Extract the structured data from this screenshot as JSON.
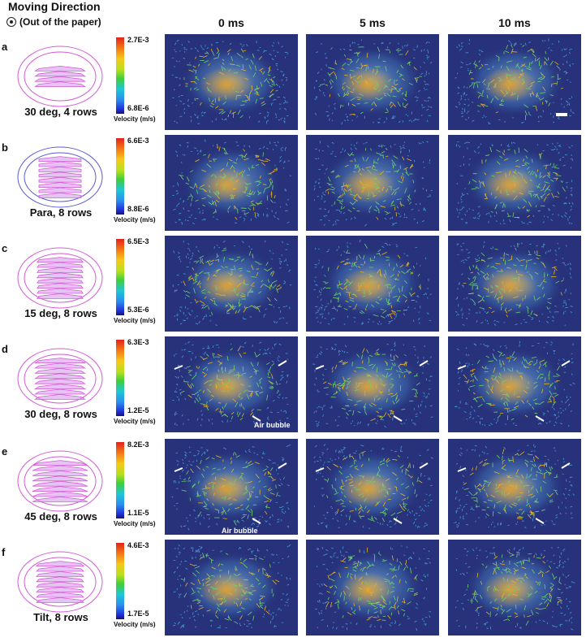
{
  "header": {
    "title": "Moving Direction",
    "subtitle": "(Out of the paper)",
    "columns": [
      "0 ms",
      "5 ms",
      "10 ms"
    ]
  },
  "rows": [
    {
      "letter": "a",
      "label": "30 deg, 4 rows",
      "vmax": "2.7E-3",
      "vmin": "6.8E-6",
      "unit": "Velocity (m/s)"
    },
    {
      "letter": "b",
      "label": "Para, 8 rows",
      "vmax": "6.6E-3",
      "vmin": "8.8E-6",
      "unit": "Velocity (m/s)"
    },
    {
      "letter": "c",
      "label": "15 deg, 8 rows",
      "vmax": "6.5E-3",
      "vmin": "5.3E-6",
      "unit": "Velocity (m/s)"
    },
    {
      "letter": "d",
      "label": "30 deg, 8 rows",
      "vmax": "6.3E-3",
      "vmin": "1.2E-5",
      "unit": "Velocity (m/s)"
    },
    {
      "letter": "e",
      "label": "45 deg, 8 rows",
      "vmax": "8.2E-3",
      "vmin": "1.1E-5",
      "unit": "Velocity (m/s)"
    },
    {
      "letter": "f",
      "label": "Tilt, 8 rows",
      "vmax": "4.6E-3",
      "vmin": "1.7E-5",
      "unit": "Velocity (m/s)"
    }
  ],
  "annotations": {
    "air_bubble": "Air bubble"
  },
  "colors": {
    "diagram_stroke": "#d65ad6",
    "diagram_fill": "#cc8ae8",
    "diagram_blue": "#5a5ad6",
    "field_dark": "#27327a",
    "field_mid": "#3a63a8",
    "hot": "#e6a22a"
  }
}
